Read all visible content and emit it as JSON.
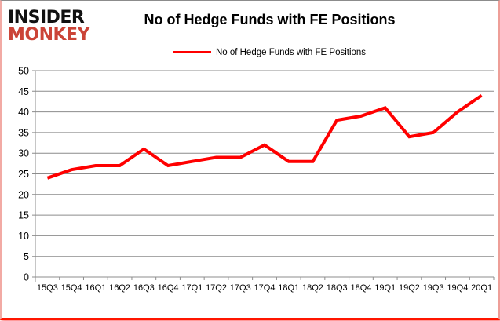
{
  "logo": {
    "line1": "INSIDER",
    "line2": "MONKEY",
    "line1_color": "#111111",
    "line2_color": "#cb4437"
  },
  "header": {
    "title": "No of Hedge Funds with FE Positions"
  },
  "legend": {
    "label": "No of Hedge Funds with FE Positions",
    "line_color": "#ff0000"
  },
  "chart_data": {
    "type": "line",
    "title": "No of Hedge Funds with FE Positions",
    "categories": [
      "15Q3",
      "15Q4",
      "16Q1",
      "16Q2",
      "16Q3",
      "16Q4",
      "17Q1",
      "17Q2",
      "17Q3",
      "17Q4",
      "18Q1",
      "18Q2",
      "18Q3",
      "18Q4",
      "19Q1",
      "19Q2",
      "19Q3",
      "19Q4",
      "20Q1"
    ],
    "series": [
      {
        "name": "No of Hedge Funds with FE Positions",
        "values": [
          24,
          26,
          27,
          27,
          31,
          27,
          28,
          29,
          29,
          32,
          28,
          28,
          38,
          39,
          41,
          34,
          35,
          40,
          44
        ],
        "color": "#ff0000"
      }
    ],
    "xlabel": "",
    "ylabel": "",
    "ylim": [
      0,
      50
    ],
    "ytick_step": 5,
    "grid": true,
    "gridline_color": "#8c8c8c",
    "legend_position": "top"
  }
}
